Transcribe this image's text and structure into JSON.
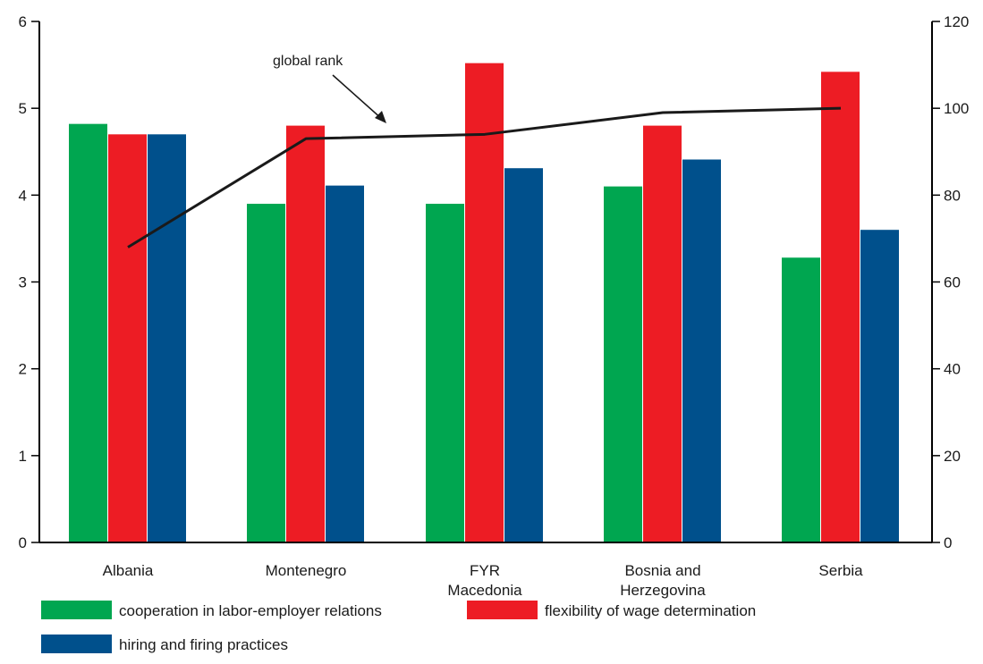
{
  "chart_data": {
    "type": "bar",
    "categories": [
      [
        "Albania"
      ],
      [
        "Montenegro"
      ],
      [
        "FYR",
        "Macedonia"
      ],
      [
        "Bosnia and",
        "Herzegovina"
      ],
      [
        "Serbia"
      ]
    ],
    "series": [
      {
        "name": "cooperation in labor-employer relations",
        "color": "#00a650",
        "values": [
          4.82,
          3.9,
          3.9,
          4.1,
          3.28
        ]
      },
      {
        "name": "flexibility of wage determination",
        "color": "#ed1c24",
        "values": [
          4.7,
          4.8,
          5.52,
          4.8,
          5.42
        ]
      },
      {
        "name": "hiring and firing practices",
        "color": "#00508c",
        "values": [
          4.7,
          4.11,
          4.31,
          4.41,
          3.6
        ]
      }
    ],
    "line_series": {
      "name": "global rank",
      "color": "#1a1a1a",
      "axis": "right",
      "values": [
        68,
        93,
        94,
        99,
        100
      ]
    },
    "annotation": "global rank",
    "y_left": {
      "ylim": [
        0,
        6
      ],
      "ticks": [
        "0",
        "1",
        "2",
        "3",
        "4",
        "5",
        "6"
      ]
    },
    "y_right": {
      "ylim": [
        0,
        120
      ],
      "ticks": [
        "0",
        "20",
        "40",
        "60",
        "80",
        "100",
        "120"
      ]
    },
    "legend_position": "bottom-left",
    "grid": false
  }
}
